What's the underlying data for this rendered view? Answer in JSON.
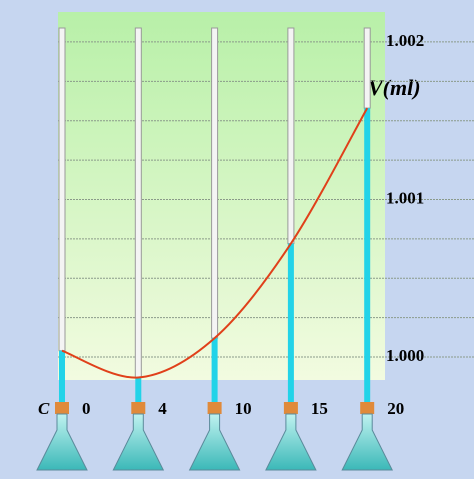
{
  "chart_data": {
    "type": "line",
    "x_label": "C",
    "y_label": "V(ml)",
    "categories": [
      "0",
      "4",
      "10",
      "15",
      "20"
    ],
    "series": [
      {
        "name": "V",
        "color": "#e0401a",
        "values": [
          1.00004,
          0.99987,
          1.00012,
          1.00072,
          1.00158
        ]
      }
    ],
    "tube_color": "#22d3e8",
    "ylim": [
      0.999854,
      1.00219
    ],
    "yticks": [
      {
        "value": 1,
        "label": "1.000"
      },
      {
        "value": 1.001,
        "label": "1.001"
      },
      {
        "value": 1.002,
        "label": "1.002"
      }
    ],
    "ygrid": [
      1.00025,
      1.0005,
      1.00075,
      1.00125,
      1.0015,
      1.00175
    ],
    "grid": true
  }
}
